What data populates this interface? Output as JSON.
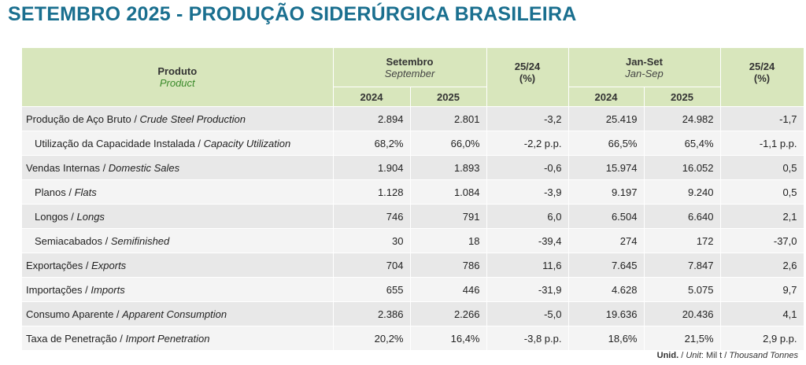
{
  "title": "SETEMBRO 2025 - PRODUÇÃO SIDERÚRGICA BRASILEIRA",
  "header": {
    "product_pt": "Produto",
    "product_en": "Product",
    "month_pt": "Setembro",
    "month_en": "September",
    "var_label": "25/24",
    "var_unit": "(%)",
    "ytd_pt": "Jan-Set",
    "ytd_en": "Jan-Sep",
    "year_prev": "2024",
    "year_curr": "2025"
  },
  "rows": [
    {
      "pt": "Produção de Aço Bruto / ",
      "en": "Crude Steel Production",
      "m24": "2.894",
      "m25": "2.801",
      "mvar": "-3,2",
      "y24": "25.419",
      "y25": "24.982",
      "yvar": "-1,7"
    },
    {
      "pt": "Utilização da Capacidade Instalada / ",
      "en": "Capacity Utilization",
      "m24": "68,2%",
      "m25": "66,0%",
      "mvar": "-2,2 p.p.",
      "y24": "66,5%",
      "y25": "65,4%",
      "yvar": "-1,1 p.p."
    },
    {
      "pt": "Vendas Internas / ",
      "en": "Domestic Sales",
      "m24": "1.904",
      "m25": "1.893",
      "mvar": "-0,6",
      "y24": "15.974",
      "y25": "16.052",
      "yvar": "0,5"
    },
    {
      "pt": "Planos / ",
      "en": "Flats",
      "m24": "1.128",
      "m25": "1.084",
      "mvar": "-3,9",
      "y24": "9.197",
      "y25": "9.240",
      "yvar": "0,5"
    },
    {
      "pt": "Longos / ",
      "en": "Longs",
      "m24": "746",
      "m25": "791",
      "mvar": "6,0",
      "y24": "6.504",
      "y25": "6.640",
      "yvar": "2,1"
    },
    {
      "pt": "Semiacabados / ",
      "en": "Semifinished",
      "m24": "30",
      "m25": "18",
      "mvar": "-39,4",
      "y24": "274",
      "y25": "172",
      "yvar": "-37,0"
    },
    {
      "pt": "Exportações / ",
      "en": "Exports",
      "m24": "704",
      "m25": "786",
      "mvar": "11,6",
      "y24": "7.645",
      "y25": "7.847",
      "yvar": "2,6"
    },
    {
      "pt": "Importações / ",
      "en": "Imports",
      "m24": "655",
      "m25": "446",
      "mvar": "-31,9",
      "y24": "4.628",
      "y25": "5.075",
      "yvar": "9,7"
    },
    {
      "pt": "Consumo Aparente / ",
      "en": "Apparent Consumption",
      "m24": "2.386",
      "m25": "2.266",
      "mvar": "-5,0",
      "y24": "19.636",
      "y25": "20.436",
      "yvar": "4,1"
    },
    {
      "pt": "Taxa de Penetração / ",
      "en": "Import Penetration",
      "m24": "20,2%",
      "m25": "16,4%",
      "mvar": "-3,8 p.p.",
      "y24": "18,6%",
      "y25": "21,5%",
      "yvar": "2,9 p.p."
    }
  ],
  "footnote": {
    "unid": "Unid.",
    "sep1": " / ",
    "unit": "Unit",
    "value": ": Mil t / ",
    "tonnes": "Thousand Tonnes"
  }
}
